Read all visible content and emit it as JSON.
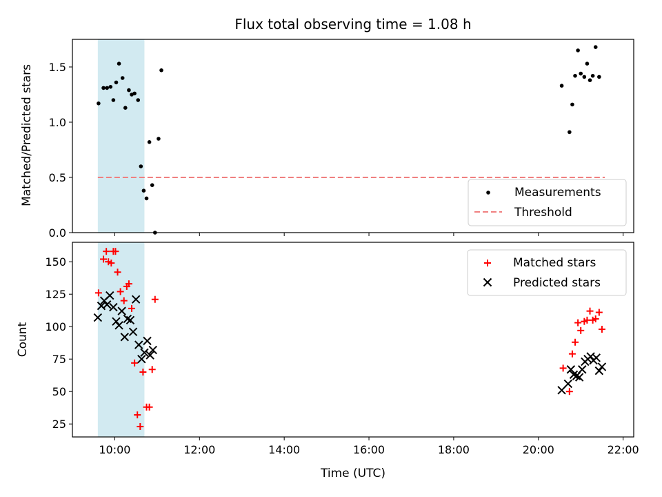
{
  "chart_data": [
    {
      "type": "scatter",
      "title": "Flux total observing time = 1.08 h",
      "ylabel": "Matched/Predicted stars",
      "xlim": [
        "09:00",
        "22:15"
      ],
      "ylim": [
        0,
        1.75
      ],
      "yticks": [
        0.0,
        0.5,
        1.0,
        1.5
      ],
      "ytick_labels": [
        "0.0",
        "0.5",
        "1.0",
        "1.5"
      ],
      "grid": false,
      "legend_position": "lower-right",
      "shaded_interval": [
        "09:36",
        "10:42"
      ],
      "shaded_color": "#add8e6",
      "threshold": 0.5,
      "series": [
        {
          "name": "Measurements",
          "color": "#000000",
          "marker": "dot",
          "x": [
            "09:37",
            "09:44",
            "09:49",
            "09:54",
            "09:58",
            "10:02",
            "10:06",
            "10:11",
            "10:15",
            "10:20",
            "10:24",
            "10:28",
            "10:33",
            "10:37",
            "10:41",
            "10:45",
            "10:49",
            "10:53",
            "10:57",
            "11:02",
            "11:06",
            "11:10",
            "11:14",
            "11:19",
            "20:33",
            "20:44",
            "20:48",
            "20:52",
            "20:56",
            "21:00",
            "21:05",
            "21:09",
            "21:13",
            "21:17",
            "21:21",
            "21:26",
            "21:30",
            "21:34"
          ],
          "y": [
            1.17,
            1.31,
            1.31,
            1.32,
            1.2,
            1.36,
            1.53,
            1.4,
            1.13,
            1.29,
            1.25,
            1.26,
            1.2,
            0.6,
            0.38,
            0.31,
            0.82,
            0.43,
            0.0,
            0.85,
            1.47,
            null,
            null,
            null,
            1.33,
            0.91,
            1.16,
            1.42,
            1.65,
            1.44,
            1.41,
            1.53,
            1.38,
            1.42,
            1.68,
            1.41,
            null,
            null
          ]
        },
        {
          "name": "Threshold",
          "color": "#f08080",
          "style": "dashed",
          "x": [
            "09:36",
            "21:34"
          ],
          "y": [
            0.5,
            0.5
          ]
        }
      ]
    },
    {
      "type": "scatter",
      "xlabel": "Time (UTC)",
      "ylabel": "Count",
      "xlim": [
        "09:00",
        "22:15"
      ],
      "xticks": [
        "10:00",
        "12:00",
        "14:00",
        "16:00",
        "18:00",
        "20:00",
        "22:00"
      ],
      "ylim": [
        15,
        165
      ],
      "yticks": [
        25,
        50,
        75,
        100,
        125,
        150
      ],
      "grid": false,
      "legend_position": "upper-right",
      "shaded_interval": [
        "09:36",
        "10:42"
      ],
      "shaded_color": "#add8e6",
      "series": [
        {
          "name": "Matched stars",
          "color": "#ff0000",
          "marker": "plus",
          "x": [
            "09:37",
            "09:44",
            "09:48",
            "09:51",
            "09:55",
            "09:58",
            "10:01",
            "10:04",
            "10:08",
            "10:13",
            "10:17",
            "10:20",
            "10:24",
            "10:28",
            "10:32",
            "10:36",
            "10:40",
            "10:45",
            "10:49",
            "10:53",
            "10:57",
            "11:02",
            "11:06",
            "11:10",
            "11:14",
            "11:18",
            "20:35",
            "20:44",
            "20:48",
            "20:52",
            "20:56",
            "21:00",
            "21:05",
            "21:09",
            "21:13",
            "21:17",
            "21:21",
            "21:26",
            "21:30",
            "21:34"
          ],
          "y": [
            126,
            152,
            158,
            150,
            149,
            158,
            158,
            142,
            127,
            120,
            131,
            133,
            114,
            72,
            32,
            23,
            65,
            38,
            38,
            67,
            121,
            null,
            null,
            null,
            null,
            null,
            68,
            50,
            79,
            88,
            103,
            97,
            104,
            105,
            112,
            105,
            106,
            111,
            98,
            null
          ],
          "x_alt": [],
          "y_alt": []
        },
        {
          "name": "Predicted stars",
          "color": "#000000",
          "marker": "x",
          "x": [
            "09:36",
            "09:41",
            "09:45",
            "09:49",
            "09:53",
            "09:58",
            "10:02",
            "10:06",
            "10:10",
            "10:14",
            "10:18",
            "10:22",
            "10:26",
            "10:30",
            "10:34",
            "10:38",
            "10:42",
            "10:46",
            "10:50",
            "10:54",
            "10:58",
            "20:33",
            "20:42",
            "20:46",
            "20:50",
            "20:54",
            "20:58",
            "21:02",
            "21:06",
            "21:10",
            "21:14",
            "21:18",
            "21:22",
            "21:26",
            "21:30"
          ],
          "y": [
            107,
            116,
            120,
            117,
            124,
            115,
            104,
            101,
            112,
            92,
            106,
            105,
            96,
            121,
            86,
            75,
            80,
            89,
            78,
            82,
            null,
            51,
            56,
            67,
            63,
            62,
            61,
            67,
            73,
            75,
            77,
            74,
            76,
            66,
            69
          ],
          "x_alt": [],
          "y_alt": []
        }
      ]
    }
  ]
}
